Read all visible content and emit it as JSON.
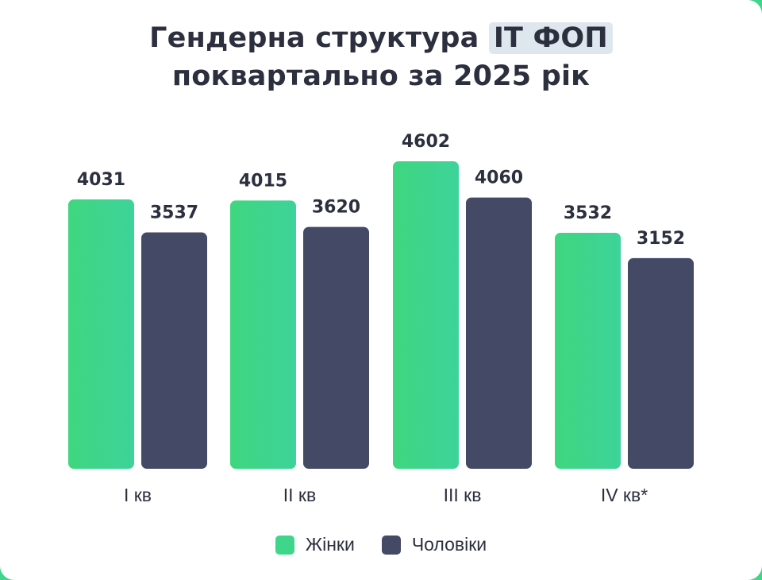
{
  "title_line1": "Гендерна структура ",
  "title_highlight": "IT ФОП",
  "title_line2": "поквартально за 2025 рік",
  "chart_data": {
    "type": "bar",
    "categories": [
      "I кв",
      "II кв",
      "III кв",
      "IV кв*"
    ],
    "series": [
      {
        "name": "Жінки",
        "values": [
          4031,
          4015,
          4602,
          3532
        ],
        "color": "#3fd68b"
      },
      {
        "name": "Чоловіки",
        "values": [
          3537,
          3620,
          4060,
          3152
        ],
        "color": "#444a66"
      }
    ],
    "ylim": [
      0,
      4602
    ],
    "grid": false,
    "legend": "bottom-center"
  }
}
